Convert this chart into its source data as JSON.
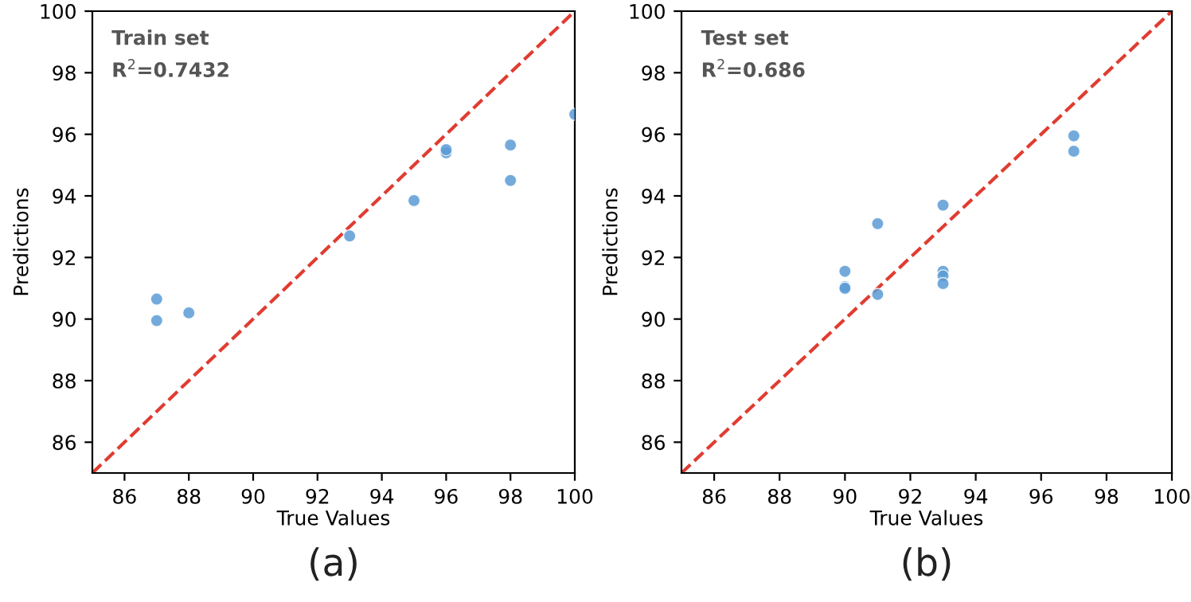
{
  "chart_data": [
    {
      "type": "scatter",
      "xlabel": "True Values",
      "ylabel": "Predictions",
      "xlim": [
        85,
        100
      ],
      "ylim": [
        85,
        100
      ],
      "xticks": [
        86,
        88,
        90,
        92,
        94,
        96,
        98,
        100
      ],
      "yticks": [
        86,
        88,
        90,
        92,
        94,
        96,
        98,
        100
      ],
      "grid": false,
      "legend": false,
      "annotations": [
        "Train set",
        "R$^{2}$=0.7432",
        "(a)"
      ],
      "series": [
        {
          "marker": "circle",
          "color": "#5b9bd5",
          "x": [
            87,
            87,
            88,
            93,
            95,
            96,
            96,
            98,
            98,
            100
          ],
          "values": [
            90.65,
            89.95,
            90.2,
            92.7,
            93.85,
            95.4,
            95.5,
            95.65,
            94.5,
            96.65
          ]
        },
        {
          "type": "line",
          "color": "#e03c31",
          "line_style": "dashed",
          "x": [
            85,
            100
          ],
          "values": [
            85,
            100
          ]
        }
      ]
    },
    {
      "type": "scatter",
      "xlabel": "True Values",
      "ylabel": "Predictions",
      "xlim": [
        85,
        100
      ],
      "ylim": [
        85,
        100
      ],
      "xticks": [
        86,
        88,
        90,
        92,
        94,
        96,
        98,
        100
      ],
      "yticks": [
        86,
        88,
        90,
        92,
        94,
        96,
        98,
        100
      ],
      "grid": false,
      "legend": false,
      "annotations": [
        "Test set",
        "R$^{2}$=0.686",
        "(b)"
      ],
      "series": [
        {
          "marker": "circle",
          "color": "#5b9bd5",
          "x": [
            90,
            90,
            90,
            91,
            91,
            93,
            93,
            93,
            93,
            97,
            97
          ],
          "values": [
            91.55,
            91.05,
            91.0,
            93.1,
            90.8,
            93.7,
            91.55,
            91.4,
            91.15,
            95.95,
            95.45
          ]
        },
        {
          "type": "line",
          "color": "#e03c31",
          "line_style": "dashed",
          "x": [
            85,
            100
          ],
          "values": [
            85,
            100
          ]
        }
      ]
    }
  ]
}
